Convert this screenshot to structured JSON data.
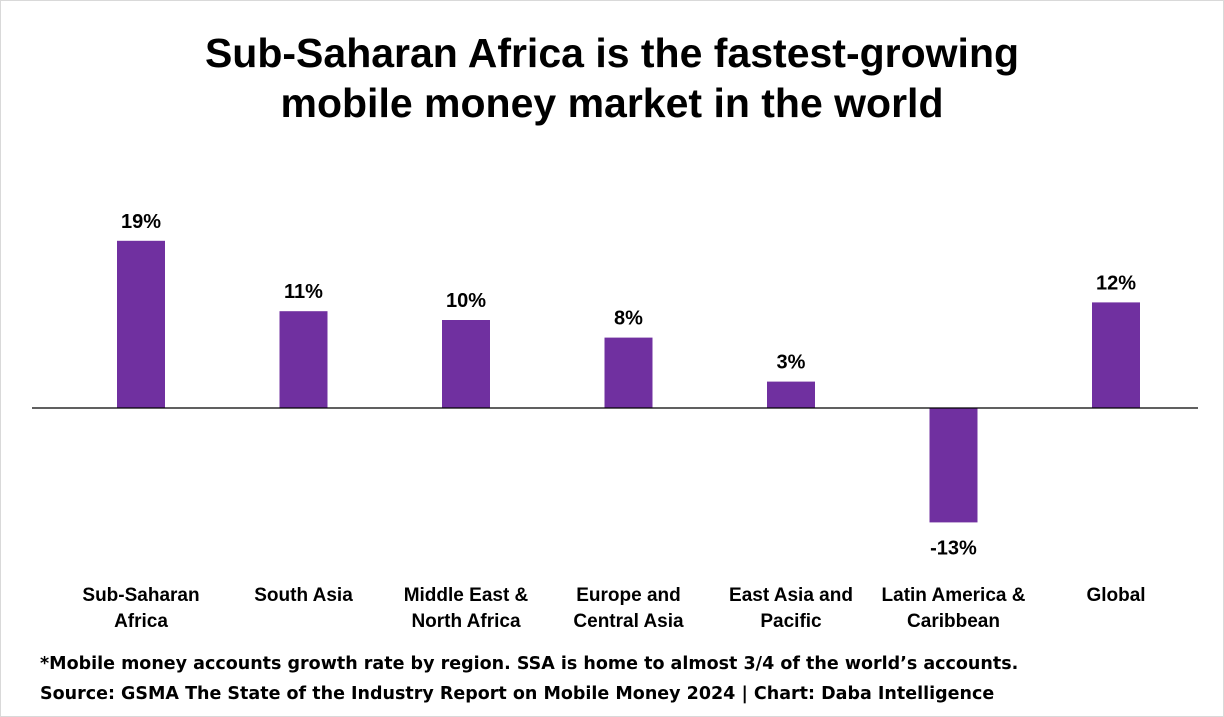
{
  "chart_data": {
    "type": "bar",
    "title_lines": [
      "Sub-Saharan Africa is the fastest-growing",
      "mobile money market in the world"
    ],
    "categories": [
      [
        "Sub-Saharan",
        "Africa"
      ],
      [
        "South Asia"
      ],
      [
        "Middle East &",
        "North Africa"
      ],
      [
        "Europe and",
        "Central Asia"
      ],
      [
        "East Asia and",
        "Pacific"
      ],
      [
        "Latin America &",
        "Caribbean"
      ],
      [
        "Global"
      ]
    ],
    "values": [
      19,
      11,
      10,
      8,
      3,
      -13,
      12
    ],
    "data_labels": [
      "19%",
      "11%",
      "10%",
      "8%",
      "3%",
      "-13%",
      "12%"
    ],
    "bar_color": "#7030a0",
    "ylim": [
      -13,
      19
    ],
    "grid": false,
    "legend": "none"
  },
  "footnote": "*Mobile money accounts growth rate by region. SSA is home to almost 3/4 of the world’s accounts.",
  "source": "Source: GSMA The State of the Industry Report on Mobile Money 2024 | Chart: Daba Intelligence"
}
